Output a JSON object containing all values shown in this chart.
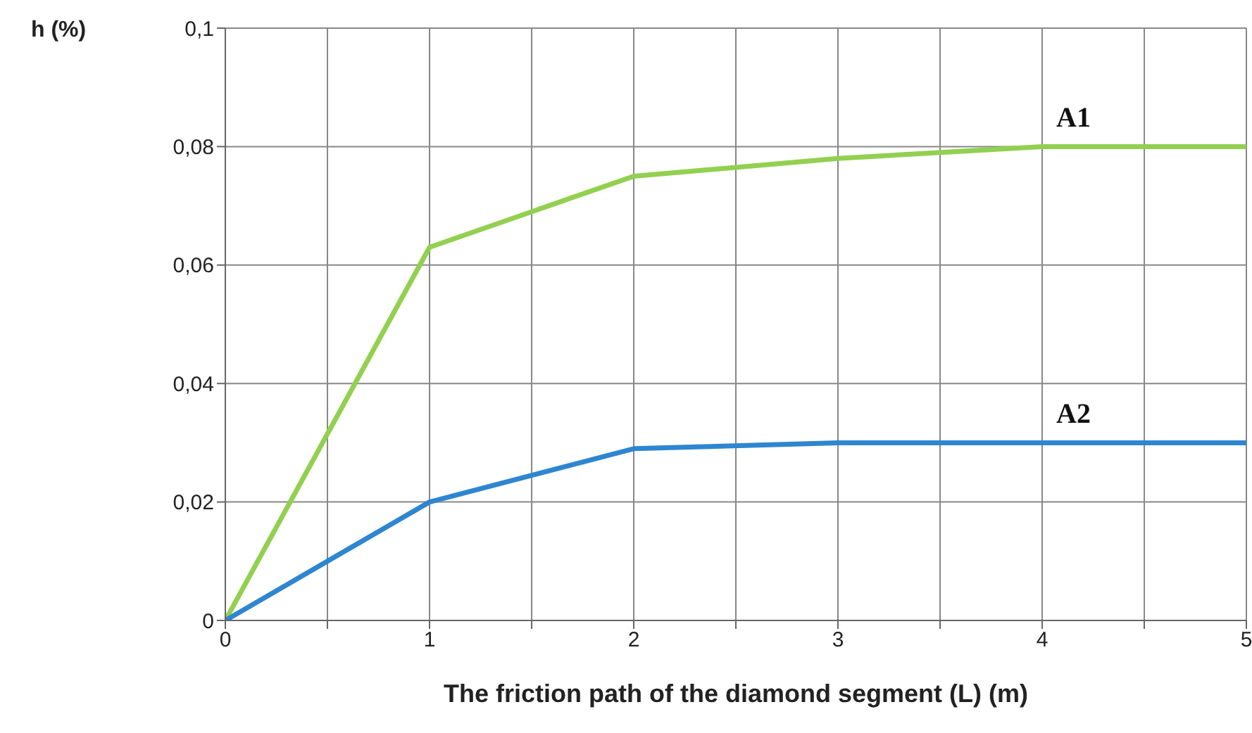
{
  "chart_data": {
    "type": "line",
    "xlabel": "The friction path of the diamond segment (L) (m)",
    "ylabel": "h (%)",
    "x": [
      0,
      1,
      2,
      3,
      4,
      5
    ],
    "series": [
      {
        "name": "A1",
        "color": "#92d050",
        "values": [
          0,
          0.063,
          0.075,
          0.078,
          0.08,
          0.08
        ]
      },
      {
        "name": "A2",
        "color": "#2e86d0",
        "values": [
          0,
          0.02,
          0.029,
          0.03,
          0.03,
          0.03
        ]
      }
    ],
    "xlim": [
      0,
      5
    ],
    "xticks": [
      0,
      {
        "value": 0.5,
        "label": null
      },
      1,
      {
        "value": 1.5,
        "label": null
      },
      2,
      {
        "value": 2.5,
        "label": null
      },
      3,
      {
        "value": 3.5,
        "label": null
      },
      4,
      {
        "value": 4.5,
        "label": null
      },
      5
    ],
    "ylim": [
      0,
      0.1
    ],
    "yticks": [
      0,
      {
        "value": 0.02,
        "label": "0,02"
      },
      {
        "value": 0.04,
        "label": "0,04"
      },
      {
        "value": 0.06,
        "label": "0,06"
      },
      {
        "value": 0.08,
        "label": "0,08"
      },
      {
        "value": 0.1,
        "label": "0,1"
      }
    ],
    "grid": true,
    "legend": false,
    "marker": "none",
    "line_style": "solid"
  }
}
